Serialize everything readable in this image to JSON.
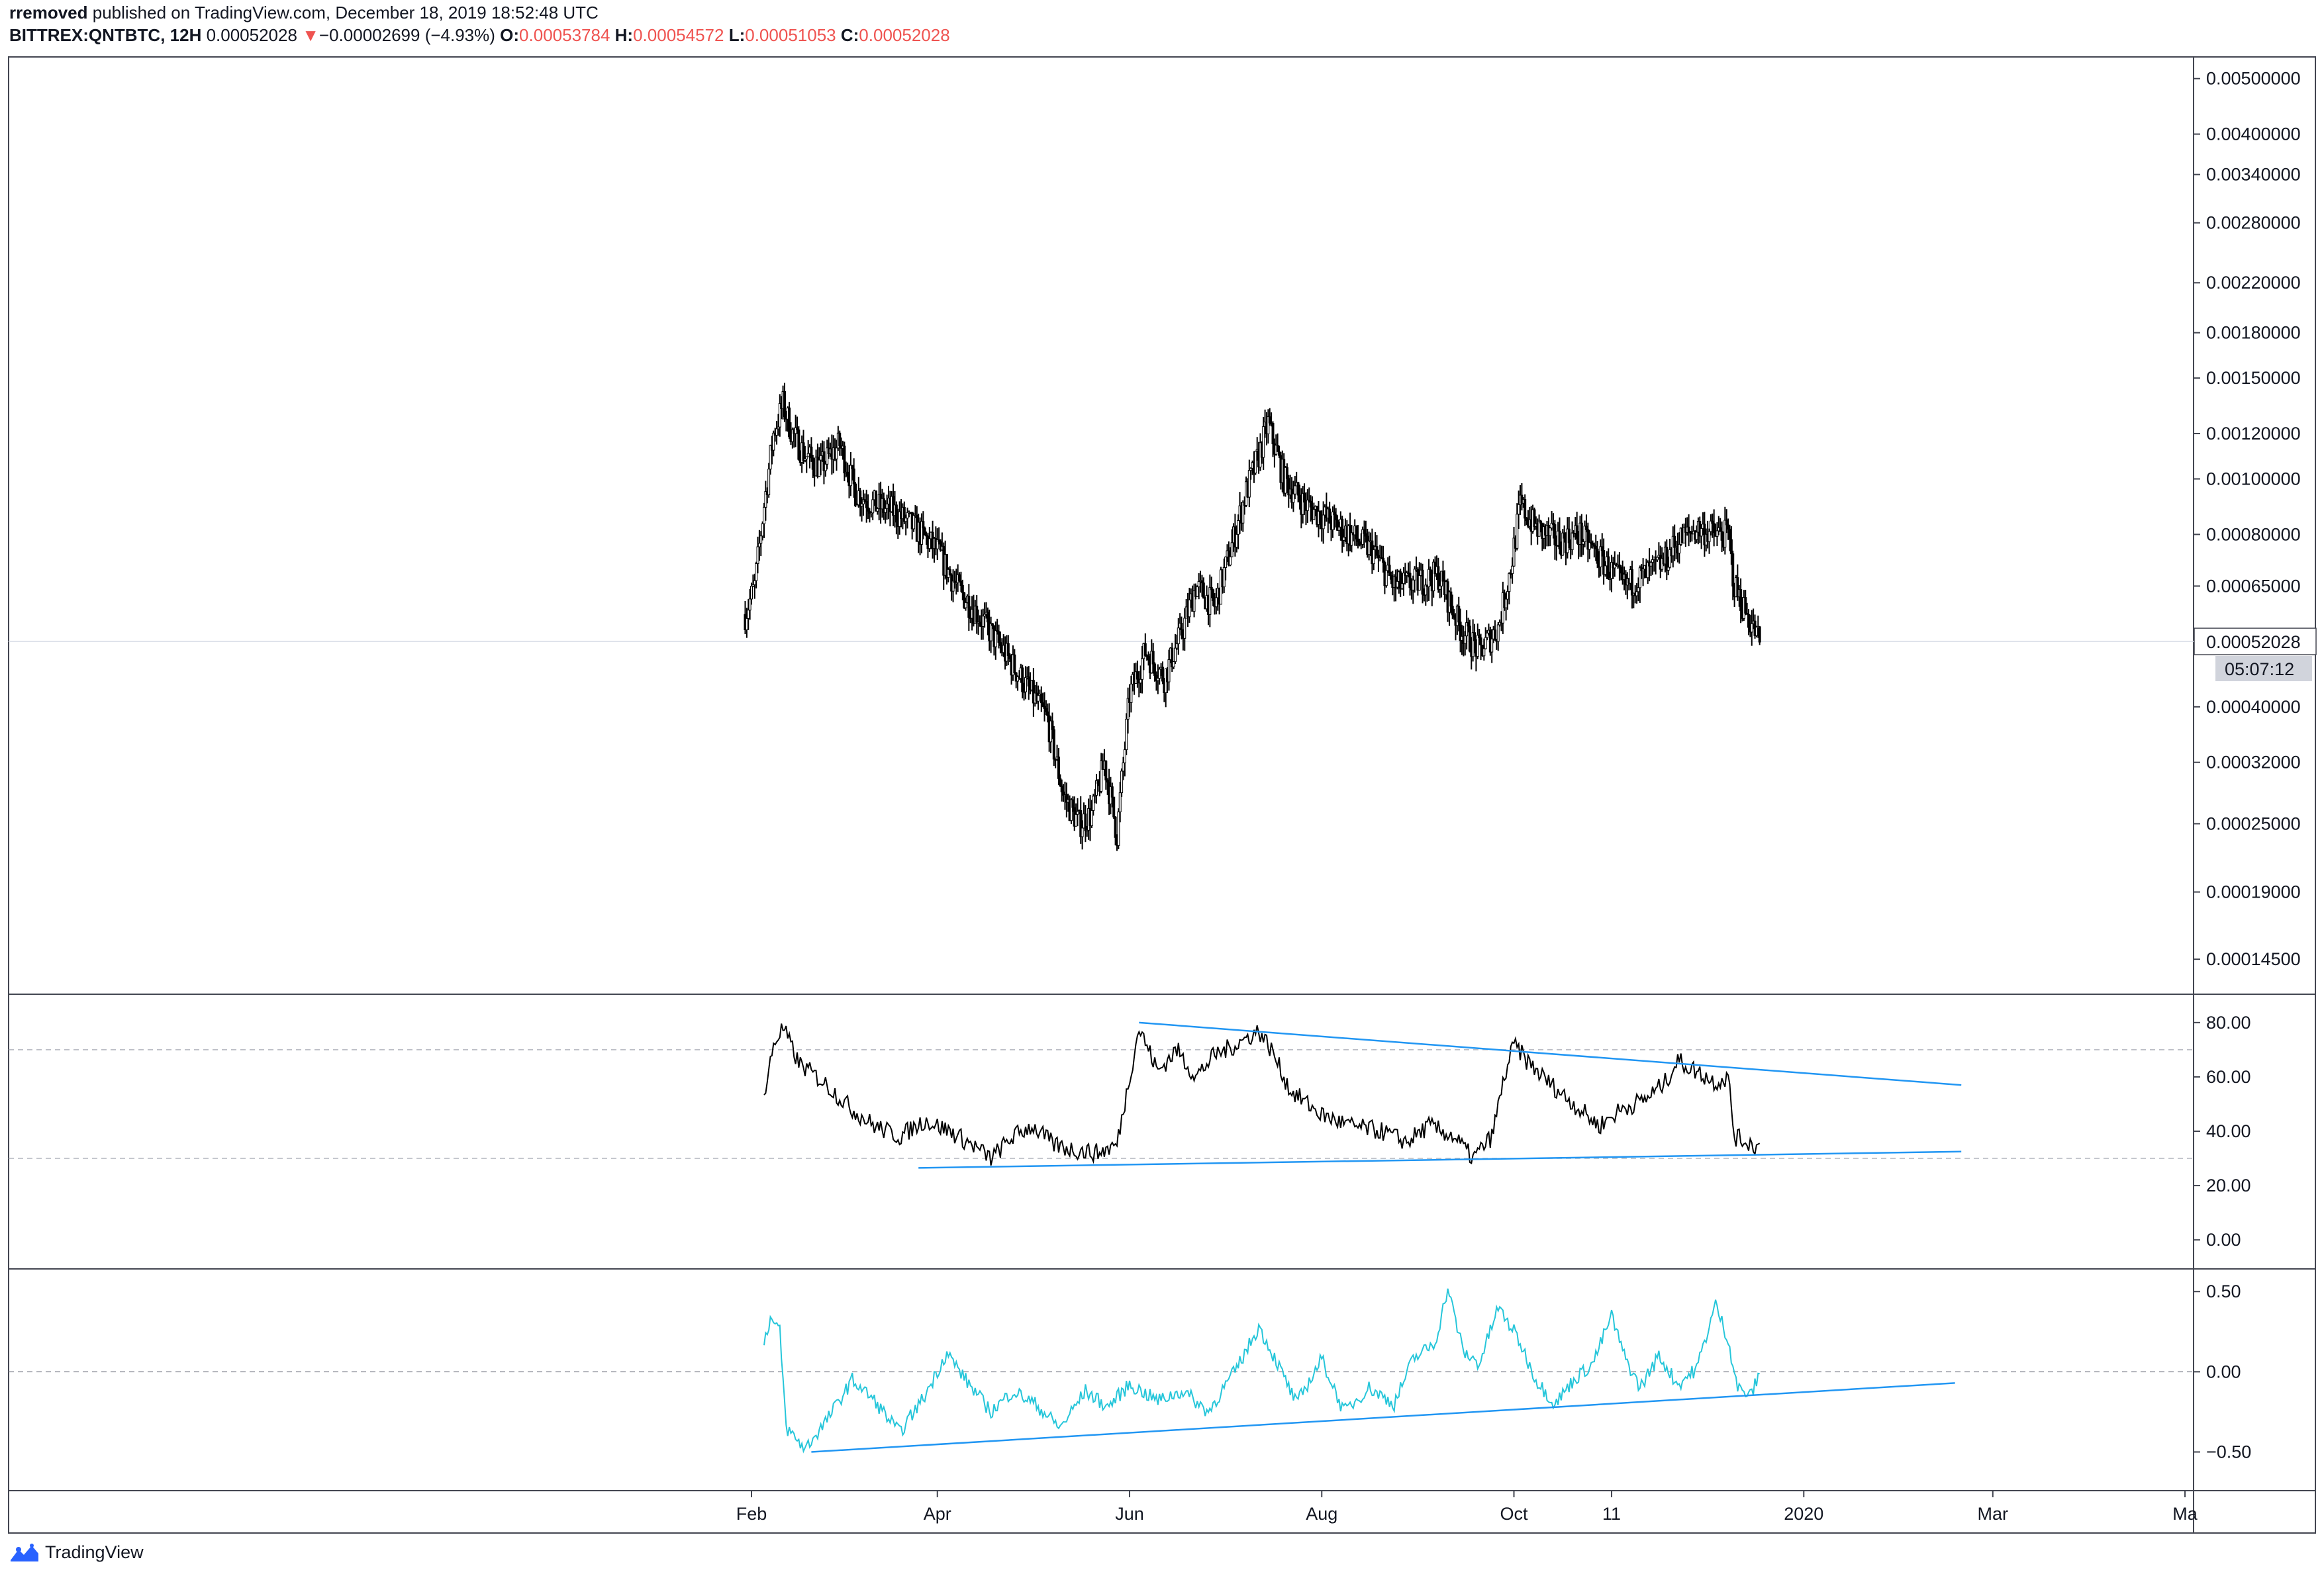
{
  "header": {
    "author": "rremoved",
    "published_text": "published on TradingView.com, December 18, 2019 18:52:48 UTC",
    "symbol": "BITTREX:QNTBTC, 12H",
    "last": "0.00052028",
    "change_arrow": "▼",
    "change": "−0.00002699 (−4.93%)",
    "o_label": "O:",
    "o_value": "0.00053784",
    "h_label": "H:",
    "h_value": "0.00054572",
    "l_label": "L:",
    "l_value": "0.00051053",
    "c_label": "C:",
    "c_value": "0.00052028"
  },
  "footer": {
    "brand": "TradingView",
    "logo_icon": "tradingview-logo-icon"
  },
  "colors": {
    "candles": "#000000",
    "trendline": "#2196f3",
    "cci": "#26c6da",
    "down": "#ef5350",
    "grid": "#e0e3eb"
  },
  "chart_data": [
    {
      "type": "candlestick",
      "panel": "price",
      "scale": "log",
      "x_range": [
        "2019-01-01",
        "2020-05-01"
      ],
      "x_ticks": [
        {
          "label": "Feb",
          "date": "2019-02-01"
        },
        {
          "label": "Apr",
          "date": "2019-04-01"
        },
        {
          "label": "Jun",
          "date": "2019-06-01"
        },
        {
          "label": "Aug",
          "date": "2019-08-01"
        },
        {
          "label": "Oct",
          "date": "2019-10-01"
        },
        {
          "label": "11",
          "date": "2019-11-01"
        },
        {
          "label": "2020",
          "date": "2020-01-01"
        },
        {
          "label": "Mar",
          "date": "2020-03-01"
        },
        {
          "label": "Ma",
          "date": "2020-05-01"
        }
      ],
      "y_ticks": [
        "0.00500000",
        "0.00400000",
        "0.00340000",
        "0.00280000",
        "0.00220000",
        "0.00180000",
        "0.00150000",
        "0.00120000",
        "0.00100000",
        "0.00080000",
        "0.00065000",
        "0.00040000",
        "0.00032000",
        "0.00025000",
        "0.00019000",
        "0.00014500"
      ],
      "ylim": [
        0.000135,
        0.0052
      ],
      "last_price": 0.00052028,
      "last_price_label": "0.00052028",
      "countdown": "05:07:12",
      "close_path": [
        [
          "2019-01-30",
          0.00058
        ],
        [
          "2019-02-02",
          0.00065
        ],
        [
          "2019-02-05",
          0.0009
        ],
        [
          "2019-02-08",
          0.0012
        ],
        [
          "2019-02-11",
          0.00135
        ],
        [
          "2019-02-14",
          0.0012
        ],
        [
          "2019-02-18",
          0.0011
        ],
        [
          "2019-02-23",
          0.00105
        ],
        [
          "2019-03-01",
          0.00115
        ],
        [
          "2019-03-06",
          0.00095
        ],
        [
          "2019-03-12",
          0.0009
        ],
        [
          "2019-03-18",
          0.00088
        ],
        [
          "2019-03-25",
          0.00082
        ],
        [
          "2019-04-01",
          0.00075
        ],
        [
          "2019-04-07",
          0.00065
        ],
        [
          "2019-04-14",
          0.00058
        ],
        [
          "2019-04-22",
          0.0005
        ],
        [
          "2019-05-01",
          0.00042
        ],
        [
          "2019-05-06",
          0.00038
        ],
        [
          "2019-05-11",
          0.00028
        ],
        [
          "2019-05-16",
          0.00025
        ],
        [
          "2019-05-20",
          0.00026
        ],
        [
          "2019-05-24",
          0.00032
        ],
        [
          "2019-05-28",
          0.00024
        ],
        [
          "2019-06-01",
          0.00042
        ],
        [
          "2019-06-06",
          0.0005
        ],
        [
          "2019-06-12",
          0.00045
        ],
        [
          "2019-06-18",
          0.00055
        ],
        [
          "2019-06-22",
          0.00065
        ],
        [
          "2019-06-28",
          0.0006
        ],
        [
          "2019-07-03",
          0.00075
        ],
        [
          "2019-07-08",
          0.00095
        ],
        [
          "2019-07-12",
          0.0011
        ],
        [
          "2019-07-15",
          0.00125
        ],
        [
          "2019-07-20",
          0.001
        ],
        [
          "2019-07-27",
          0.0009
        ],
        [
          "2019-08-03",
          0.00085
        ],
        [
          "2019-08-10",
          0.0008
        ],
        [
          "2019-08-17",
          0.00075
        ],
        [
          "2019-08-24",
          0.00065
        ],
        [
          "2019-08-31",
          0.00066
        ],
        [
          "2019-09-07",
          0.00068
        ],
        [
          "2019-09-14",
          0.00055
        ],
        [
          "2019-09-20",
          0.0005
        ],
        [
          "2019-09-26",
          0.00055
        ],
        [
          "2019-09-30",
          0.0007
        ],
        [
          "2019-10-03",
          0.0009
        ],
        [
          "2019-10-08",
          0.00082
        ],
        [
          "2019-10-15",
          0.00078
        ],
        [
          "2019-10-22",
          0.0008
        ],
        [
          "2019-10-29",
          0.00072
        ],
        [
          "2019-11-05",
          0.00065
        ],
        [
          "2019-11-12",
          0.00068
        ],
        [
          "2019-11-18",
          0.00072
        ],
        [
          "2019-11-22",
          0.00078
        ],
        [
          "2019-11-28",
          0.00082
        ],
        [
          "2019-12-04",
          0.0008
        ],
        [
          "2019-12-08",
          0.0008
        ],
        [
          "2019-12-10",
          0.00065
        ],
        [
          "2019-12-14",
          0.00058
        ],
        [
          "2019-12-18",
          0.00052
        ]
      ]
    },
    {
      "type": "line",
      "panel": "oscillator-1",
      "y_ticks": [
        "80.00",
        "60.00",
        "40.00",
        "20.00",
        "0.00"
      ],
      "ylim": [
        -8,
        88
      ],
      "reference_levels": [
        70,
        30
      ],
      "series": [
        {
          "values": [
            [
              "2019-02-05",
              52
            ],
            [
              "2019-02-08",
              72
            ],
            [
              "2019-02-11",
              78
            ],
            [
              "2019-02-16",
              65
            ],
            [
              "2019-02-24",
              58
            ],
            [
              "2019-03-05",
              48
            ],
            [
              "2019-03-12",
              42
            ],
            [
              "2019-03-20",
              38
            ],
            [
              "2019-03-28",
              44
            ],
            [
              "2019-04-05",
              40
            ],
            [
              "2019-04-12",
              35
            ],
            [
              "2019-04-18",
              30
            ],
            [
              "2019-04-25",
              38
            ],
            [
              "2019-05-01",
              42
            ],
            [
              "2019-05-08",
              35
            ],
            [
              "2019-05-15",
              33
            ],
            [
              "2019-05-22",
              32
            ],
            [
              "2019-05-28",
              35
            ],
            [
              "2019-06-01",
              60
            ],
            [
              "2019-06-04",
              78
            ],
            [
              "2019-06-10",
              62
            ],
            [
              "2019-06-16",
              70
            ],
            [
              "2019-06-22",
              60
            ],
            [
              "2019-06-28",
              68
            ],
            [
              "2019-07-05",
              72
            ],
            [
              "2019-07-12",
              77
            ],
            [
              "2019-07-16",
              70
            ],
            [
              "2019-07-22",
              55
            ],
            [
              "2019-08-01",
              46
            ],
            [
              "2019-08-10",
              42
            ],
            [
              "2019-08-20",
              40
            ],
            [
              "2019-08-28",
              36
            ],
            [
              "2019-09-04",
              42
            ],
            [
              "2019-09-12",
              38
            ],
            [
              "2019-09-18",
              30
            ],
            [
              "2019-09-24",
              38
            ],
            [
              "2019-09-28",
              60
            ],
            [
              "2019-10-01",
              72
            ],
            [
              "2019-10-05",
              66
            ],
            [
              "2019-10-12",
              58
            ],
            [
              "2019-10-20",
              50
            ],
            [
              "2019-10-28",
              42
            ],
            [
              "2019-11-04",
              48
            ],
            [
              "2019-11-12",
              52
            ],
            [
              "2019-11-18",
              58
            ],
            [
              "2019-11-22",
              66
            ],
            [
              "2019-11-28",
              62
            ],
            [
              "2019-12-04",
              58
            ],
            [
              "2019-12-08",
              60
            ],
            [
              "2019-12-10",
              38
            ],
            [
              "2019-12-14",
              36
            ],
            [
              "2019-12-18",
              34
            ]
          ]
        }
      ],
      "trendlines": [
        {
          "from": [
            "2019-06-04",
            80
          ],
          "to": [
            "2020-02-20",
            57
          ]
        },
        {
          "from": [
            "2019-03-26",
            26.5
          ],
          "to": [
            "2020-02-20",
            32.5
          ]
        }
      ]
    },
    {
      "type": "line",
      "panel": "oscillator-2",
      "y_ticks": [
        "0.50",
        "0.00",
        "−0.50"
      ],
      "ylim": [
        -0.7,
        0.6
      ],
      "reference_levels": [
        0
      ],
      "series": [
        {
          "values": [
            [
              "2019-02-05",
              0.2
            ],
            [
              "2019-02-07",
              0.33
            ],
            [
              "2019-02-10",
              0.25
            ],
            [
              "2019-02-12",
              -0.35
            ],
            [
              "2019-02-18",
              -0.48
            ],
            [
              "2019-02-25",
              -0.3
            ],
            [
              "2019-03-05",
              -0.05
            ],
            [
              "2019-03-12",
              -0.18
            ],
            [
              "2019-03-20",
              -0.38
            ],
            [
              "2019-03-28",
              -0.15
            ],
            [
              "2019-04-04",
              0.12
            ],
            [
              "2019-04-10",
              -0.05
            ],
            [
              "2019-04-18",
              -0.25
            ],
            [
              "2019-04-25",
              -0.12
            ],
            [
              "2019-05-02",
              -0.2
            ],
            [
              "2019-05-10",
              -0.35
            ],
            [
              "2019-05-18",
              -0.12
            ],
            [
              "2019-05-25",
              -0.22
            ],
            [
              "2019-06-01",
              -0.08
            ],
            [
              "2019-06-10",
              -0.18
            ],
            [
              "2019-06-18",
              -0.12
            ],
            [
              "2019-06-26",
              -0.25
            ],
            [
              "2019-07-05",
              0.02
            ],
            [
              "2019-07-12",
              0.28
            ],
            [
              "2019-07-18",
              0.05
            ],
            [
              "2019-07-24",
              -0.2
            ],
            [
              "2019-08-01",
              0.08
            ],
            [
              "2019-08-08",
              -0.25
            ],
            [
              "2019-08-16",
              -0.1
            ],
            [
              "2019-08-24",
              -0.2
            ],
            [
              "2019-08-30",
              0.08
            ],
            [
              "2019-09-06",
              0.18
            ],
            [
              "2019-09-10",
              0.52
            ],
            [
              "2019-09-15",
              0.12
            ],
            [
              "2019-09-20",
              0.05
            ],
            [
              "2019-09-26",
              0.4
            ],
            [
              "2019-10-02",
              0.22
            ],
            [
              "2019-10-08",
              -0.05
            ],
            [
              "2019-10-14",
              -0.2
            ],
            [
              "2019-10-20",
              -0.05
            ],
            [
              "2019-10-26",
              0.05
            ],
            [
              "2019-11-01",
              0.35
            ],
            [
              "2019-11-05",
              0.1
            ],
            [
              "2019-11-10",
              -0.1
            ],
            [
              "2019-11-16",
              0.1
            ],
            [
              "2019-11-22",
              -0.08
            ],
            [
              "2019-11-28",
              0.02
            ],
            [
              "2019-12-04",
              0.42
            ],
            [
              "2019-12-08",
              0.2
            ],
            [
              "2019-12-11",
              -0.1
            ],
            [
              "2019-12-15",
              -0.15
            ],
            [
              "2019-12-18",
              -0.02
            ]
          ]
        }
      ],
      "trendlines": [
        {
          "from": [
            "2019-02-20",
            -0.5
          ],
          "to": [
            "2020-02-18",
            -0.07
          ]
        }
      ]
    }
  ]
}
